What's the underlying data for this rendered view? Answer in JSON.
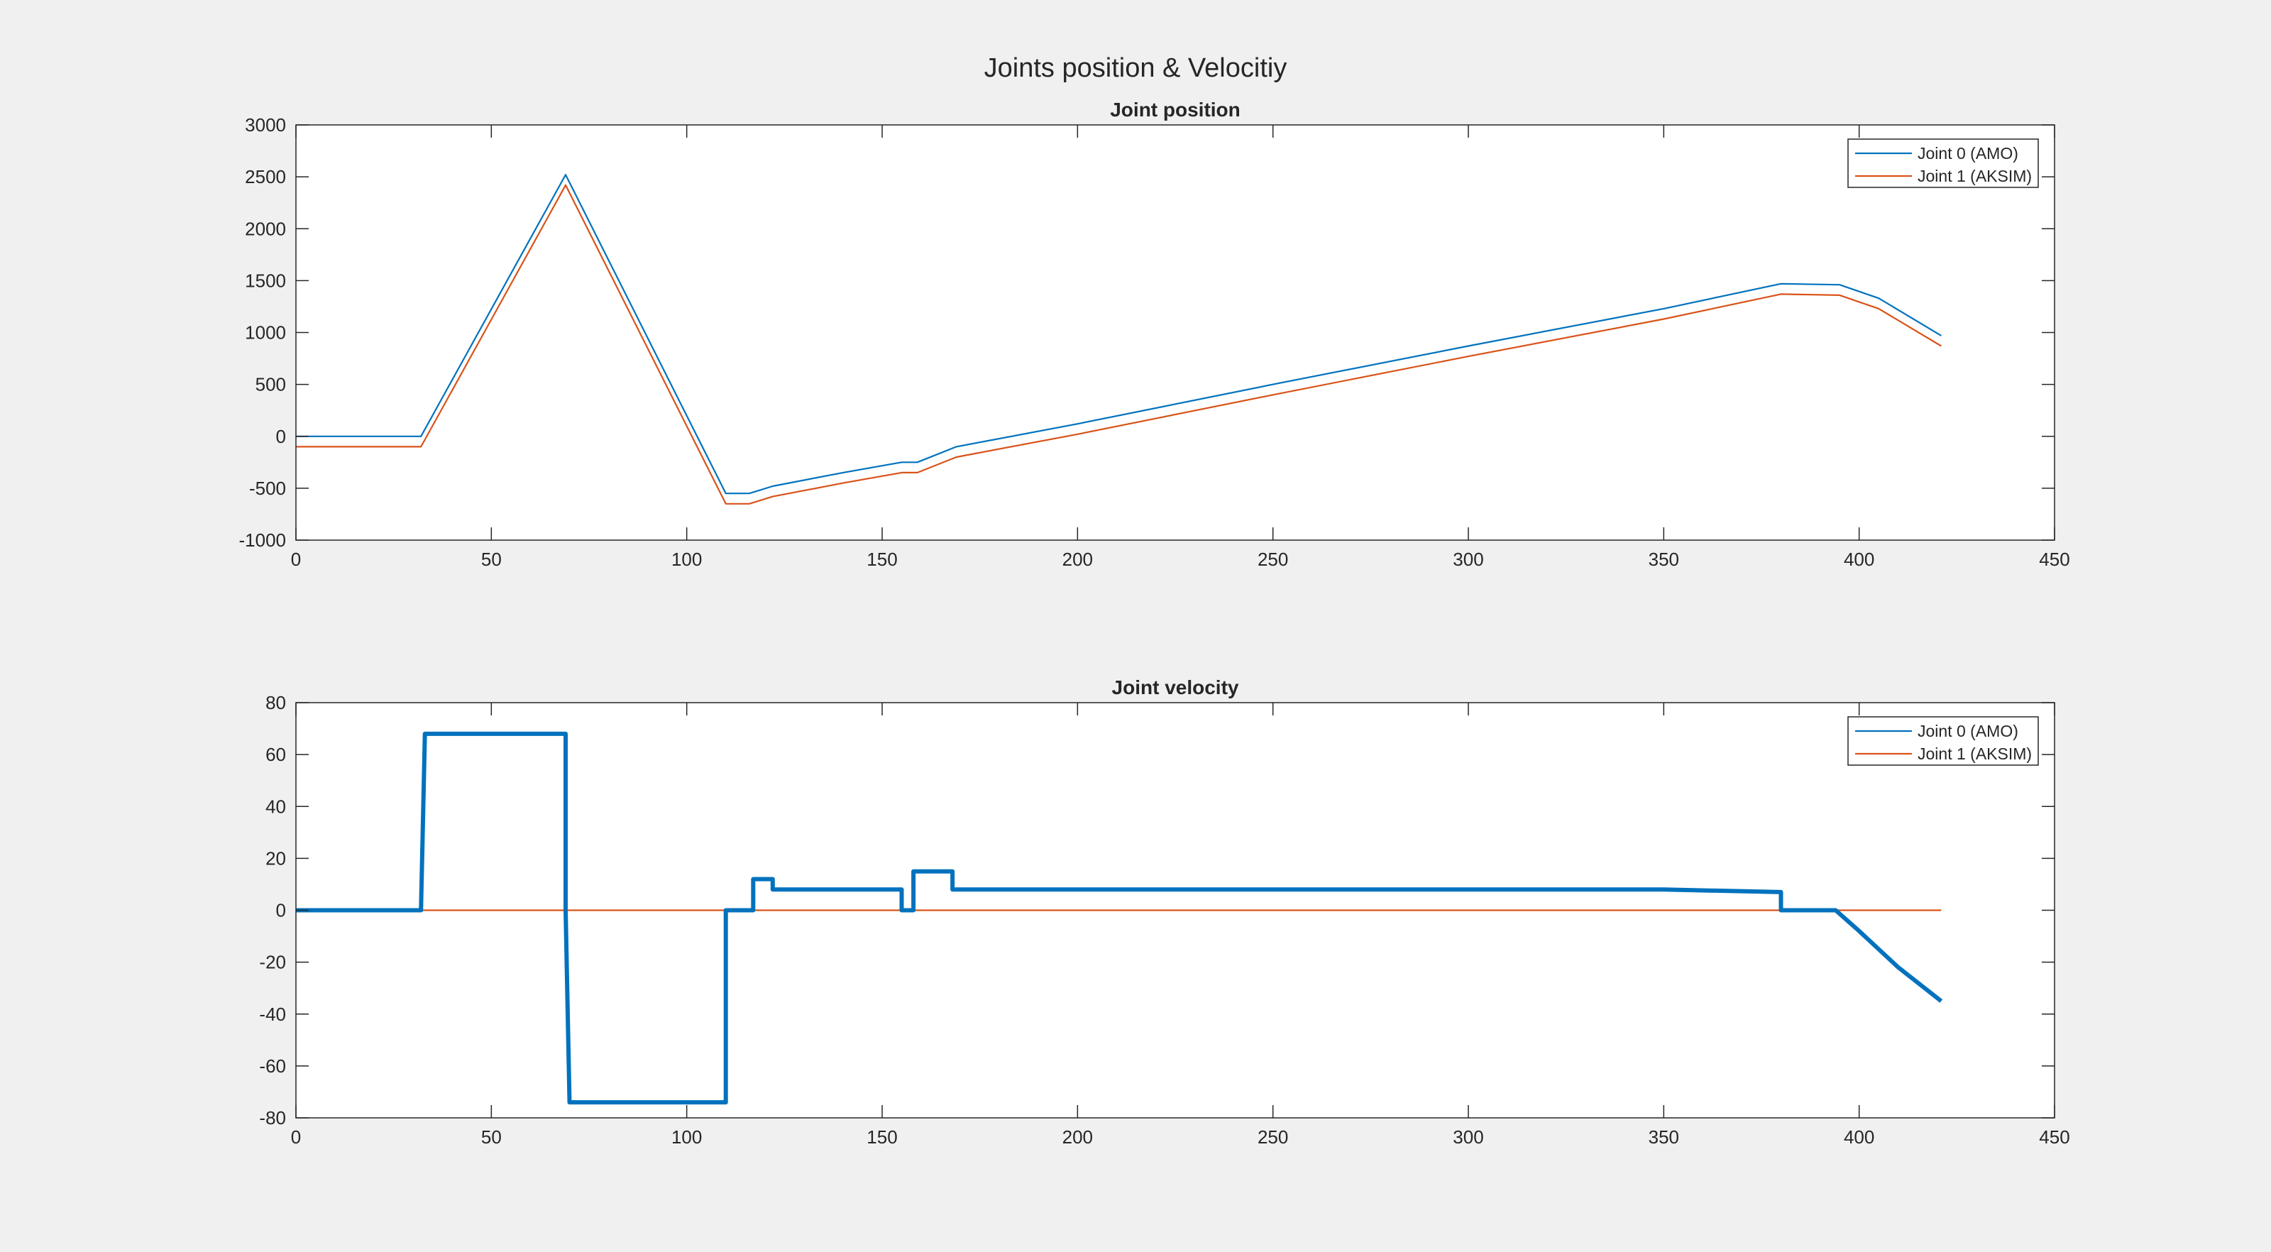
{
  "figure_title": "Joints position & Velocitiy",
  "colors": {
    "series1": "#0072bd",
    "series2": "#d95319",
    "axes_bg": "#ffffff",
    "axis_line": "#262626",
    "figure_bg": "#f0f0f0"
  },
  "chart_data": [
    {
      "type": "line",
      "title": "Joint position",
      "xlabel": "",
      "ylabel": "",
      "xlim": [
        0,
        450
      ],
      "ylim": [
        -1000,
        3000
      ],
      "xticks": [
        0,
        50,
        100,
        150,
        200,
        250,
        300,
        350,
        400,
        450
      ],
      "yticks": [
        -1000,
        -500,
        0,
        500,
        1000,
        1500,
        2000,
        2500,
        3000
      ],
      "grid": false,
      "legend": "top-right",
      "series": [
        {
          "name": "Joint 0 (AMO)",
          "x": [
            0,
            32,
            69,
            110,
            116,
            122,
            140,
            155,
            159,
            169,
            200,
            250,
            300,
            350,
            380,
            395,
            405,
            421
          ],
          "y": [
            0,
            0,
            2520,
            -550,
            -550,
            -480,
            -350,
            -250,
            -250,
            -100,
            120,
            500,
            870,
            1230,
            1470,
            1460,
            1330,
            970
          ]
        },
        {
          "name": "Joint 1 (AKSIM)",
          "x": [
            0,
            32,
            69,
            110,
            116,
            122,
            140,
            155,
            159,
            169,
            200,
            250,
            300,
            350,
            380,
            395,
            405,
            421
          ],
          "y": [
            -100,
            -100,
            2420,
            -650,
            -650,
            -580,
            -450,
            -350,
            -350,
            -200,
            20,
            400,
            770,
            1130,
            1370,
            1360,
            1230,
            870
          ]
        }
      ]
    },
    {
      "type": "line",
      "title": "Joint velocity",
      "xlabel": "",
      "ylabel": "",
      "xlim": [
        0,
        450
      ],
      "ylim": [
        -80,
        80
      ],
      "xticks": [
        0,
        50,
        100,
        150,
        200,
        250,
        300,
        350,
        400,
        450
      ],
      "yticks": [
        -80,
        -60,
        -40,
        -20,
        0,
        20,
        40,
        60,
        80
      ],
      "grid": false,
      "legend": "top-right",
      "series": [
        {
          "name": "Joint 0 (AMO)",
          "x": [
            0,
            32,
            32,
            33,
            69,
            69,
            70,
            110,
            110,
            117,
            117,
            122,
            122,
            155,
            155,
            158,
            158,
            168,
            168,
            200,
            250,
            300,
            350,
            380,
            380,
            394,
            400,
            410,
            421
          ],
          "y": [
            0,
            0,
            0,
            68,
            68,
            0,
            -74,
            -74,
            0,
            0,
            12,
            12,
            8,
            8,
            0,
            0,
            15,
            15,
            8,
            8,
            8,
            8,
            8,
            7,
            0,
            0,
            -8,
            -22,
            -35
          ]
        },
        {
          "name": "Joint 1 (AKSIM)",
          "x": [
            0,
            421
          ],
          "y": [
            0,
            0
          ]
        }
      ]
    }
  ]
}
